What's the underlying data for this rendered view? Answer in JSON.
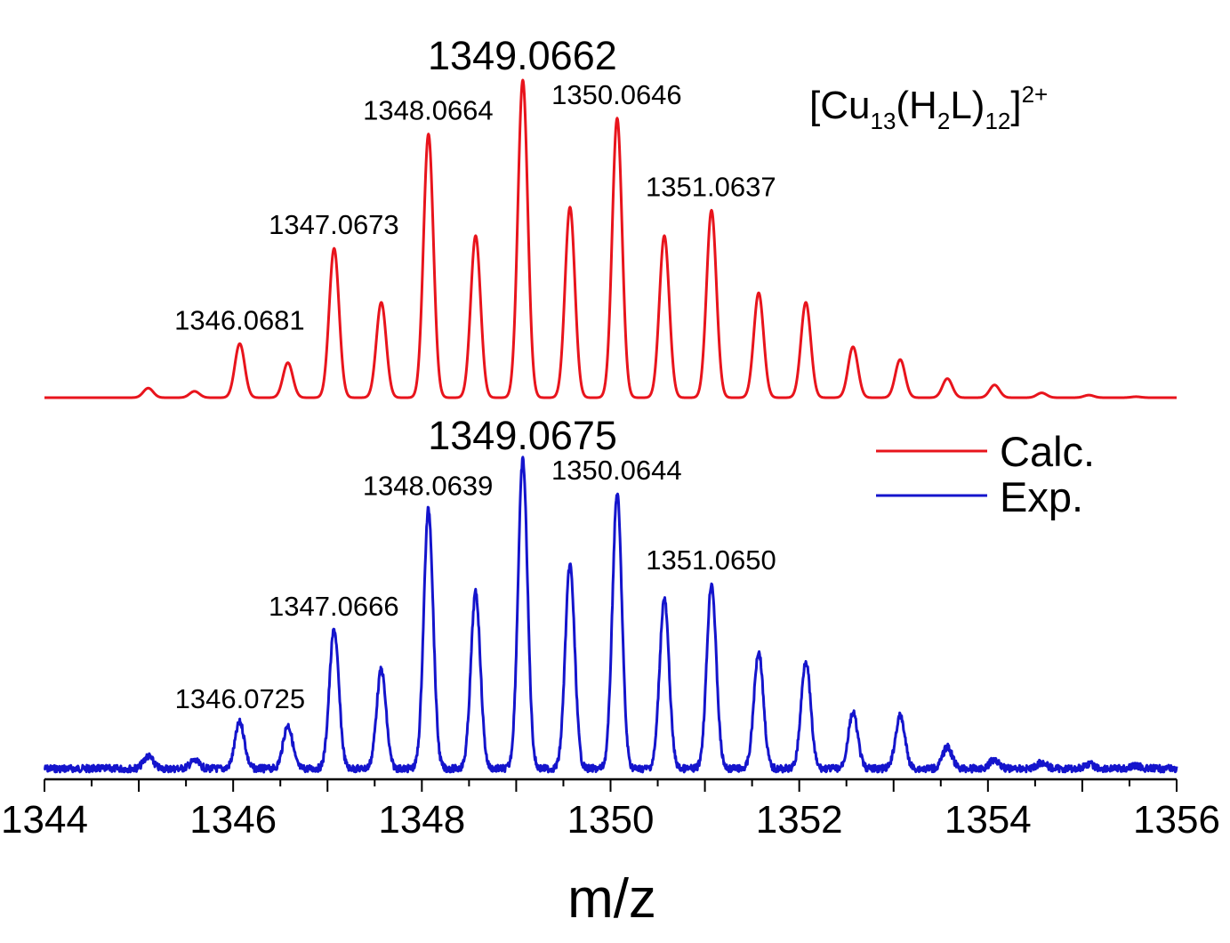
{
  "chart_data": {
    "type": "line",
    "xlabel": "m/z",
    "ylabel": "",
    "xlim": [
      1344,
      1356
    ],
    "xticks": [
      "1344",
      "1346",
      "1348",
      "1350",
      "1352",
      "1354",
      "1356"
    ],
    "grid": false,
    "legend_position": "top-right",
    "annotation": {
      "formula_main": "[Cu",
      "formula_sub1": "13",
      "formula_mid": "(H",
      "formula_sub2": "2",
      "formula_mid2": "L)",
      "formula_sub3": "12",
      "formula_end": "]",
      "formula_sup": "2+"
    },
    "series": [
      {
        "name": "Calc.",
        "color": "#e8141c",
        "peaks": [
          {
            "x": 1345.1,
            "y": 0.03
          },
          {
            "x": 1345.59,
            "y": 0.02
          },
          {
            "x": 1346.07,
            "y": 0.17
          },
          {
            "x": 1346.58,
            "y": 0.11
          },
          {
            "x": 1347.07,
            "y": 0.47
          },
          {
            "x": 1347.57,
            "y": 0.3
          },
          {
            "x": 1348.07,
            "y": 0.83
          },
          {
            "x": 1348.57,
            "y": 0.51
          },
          {
            "x": 1349.07,
            "y": 1.0
          },
          {
            "x": 1349.57,
            "y": 0.6
          },
          {
            "x": 1350.07,
            "y": 0.88
          },
          {
            "x": 1350.57,
            "y": 0.51
          },
          {
            "x": 1351.07,
            "y": 0.59
          },
          {
            "x": 1351.57,
            "y": 0.33
          },
          {
            "x": 1352.07,
            "y": 0.3
          },
          {
            "x": 1352.57,
            "y": 0.16
          },
          {
            "x": 1353.07,
            "y": 0.12
          },
          {
            "x": 1353.57,
            "y": 0.06
          },
          {
            "x": 1354.07,
            "y": 0.04
          },
          {
            "x": 1354.57,
            "y": 0.015
          },
          {
            "x": 1355.07,
            "y": 0.008
          },
          {
            "x": 1355.57,
            "y": 0.003
          }
        ],
        "labels": [
          {
            "x": 1346.0681,
            "text": "1346.0681"
          },
          {
            "x": 1347.0673,
            "text": "1347.0673"
          },
          {
            "x": 1348.0664,
            "text": "1348.0664"
          },
          {
            "x": 1349.0662,
            "text": "1349.0662",
            "main": true
          },
          {
            "x": 1350.0646,
            "text": "1350.0646"
          },
          {
            "x": 1351.0637,
            "text": "1351.0637"
          }
        ]
      },
      {
        "name": "Exp.",
        "color": "#1414cc",
        "peaks": [
          {
            "x": 1345.1,
            "y": 0.04
          },
          {
            "x": 1345.59,
            "y": 0.025
          },
          {
            "x": 1346.07,
            "y": 0.15
          },
          {
            "x": 1346.58,
            "y": 0.14
          },
          {
            "x": 1347.07,
            "y": 0.45
          },
          {
            "x": 1347.57,
            "y": 0.32
          },
          {
            "x": 1348.07,
            "y": 0.84
          },
          {
            "x": 1348.57,
            "y": 0.57
          },
          {
            "x": 1349.07,
            "y": 1.0
          },
          {
            "x": 1349.57,
            "y": 0.66
          },
          {
            "x": 1350.07,
            "y": 0.89
          },
          {
            "x": 1350.57,
            "y": 0.55
          },
          {
            "x": 1351.07,
            "y": 0.6
          },
          {
            "x": 1351.57,
            "y": 0.38
          },
          {
            "x": 1352.07,
            "y": 0.35
          },
          {
            "x": 1352.57,
            "y": 0.18
          },
          {
            "x": 1353.07,
            "y": 0.17
          },
          {
            "x": 1353.57,
            "y": 0.07
          },
          {
            "x": 1354.07,
            "y": 0.03
          },
          {
            "x": 1354.57,
            "y": 0.02
          },
          {
            "x": 1355.07,
            "y": 0.015
          },
          {
            "x": 1355.57,
            "y": 0.01
          }
        ],
        "labels": [
          {
            "x": 1346.0725,
            "text": "1346.0725"
          },
          {
            "x": 1347.0666,
            "text": "1347.0666"
          },
          {
            "x": 1348.0639,
            "text": "1348.0639"
          },
          {
            "x": 1349.0675,
            "text": "1349.0675",
            "main": true
          },
          {
            "x": 1350.0644,
            "text": "1350.0644"
          },
          {
            "x": 1351.065,
            "text": "1351.0650"
          }
        ]
      }
    ]
  }
}
